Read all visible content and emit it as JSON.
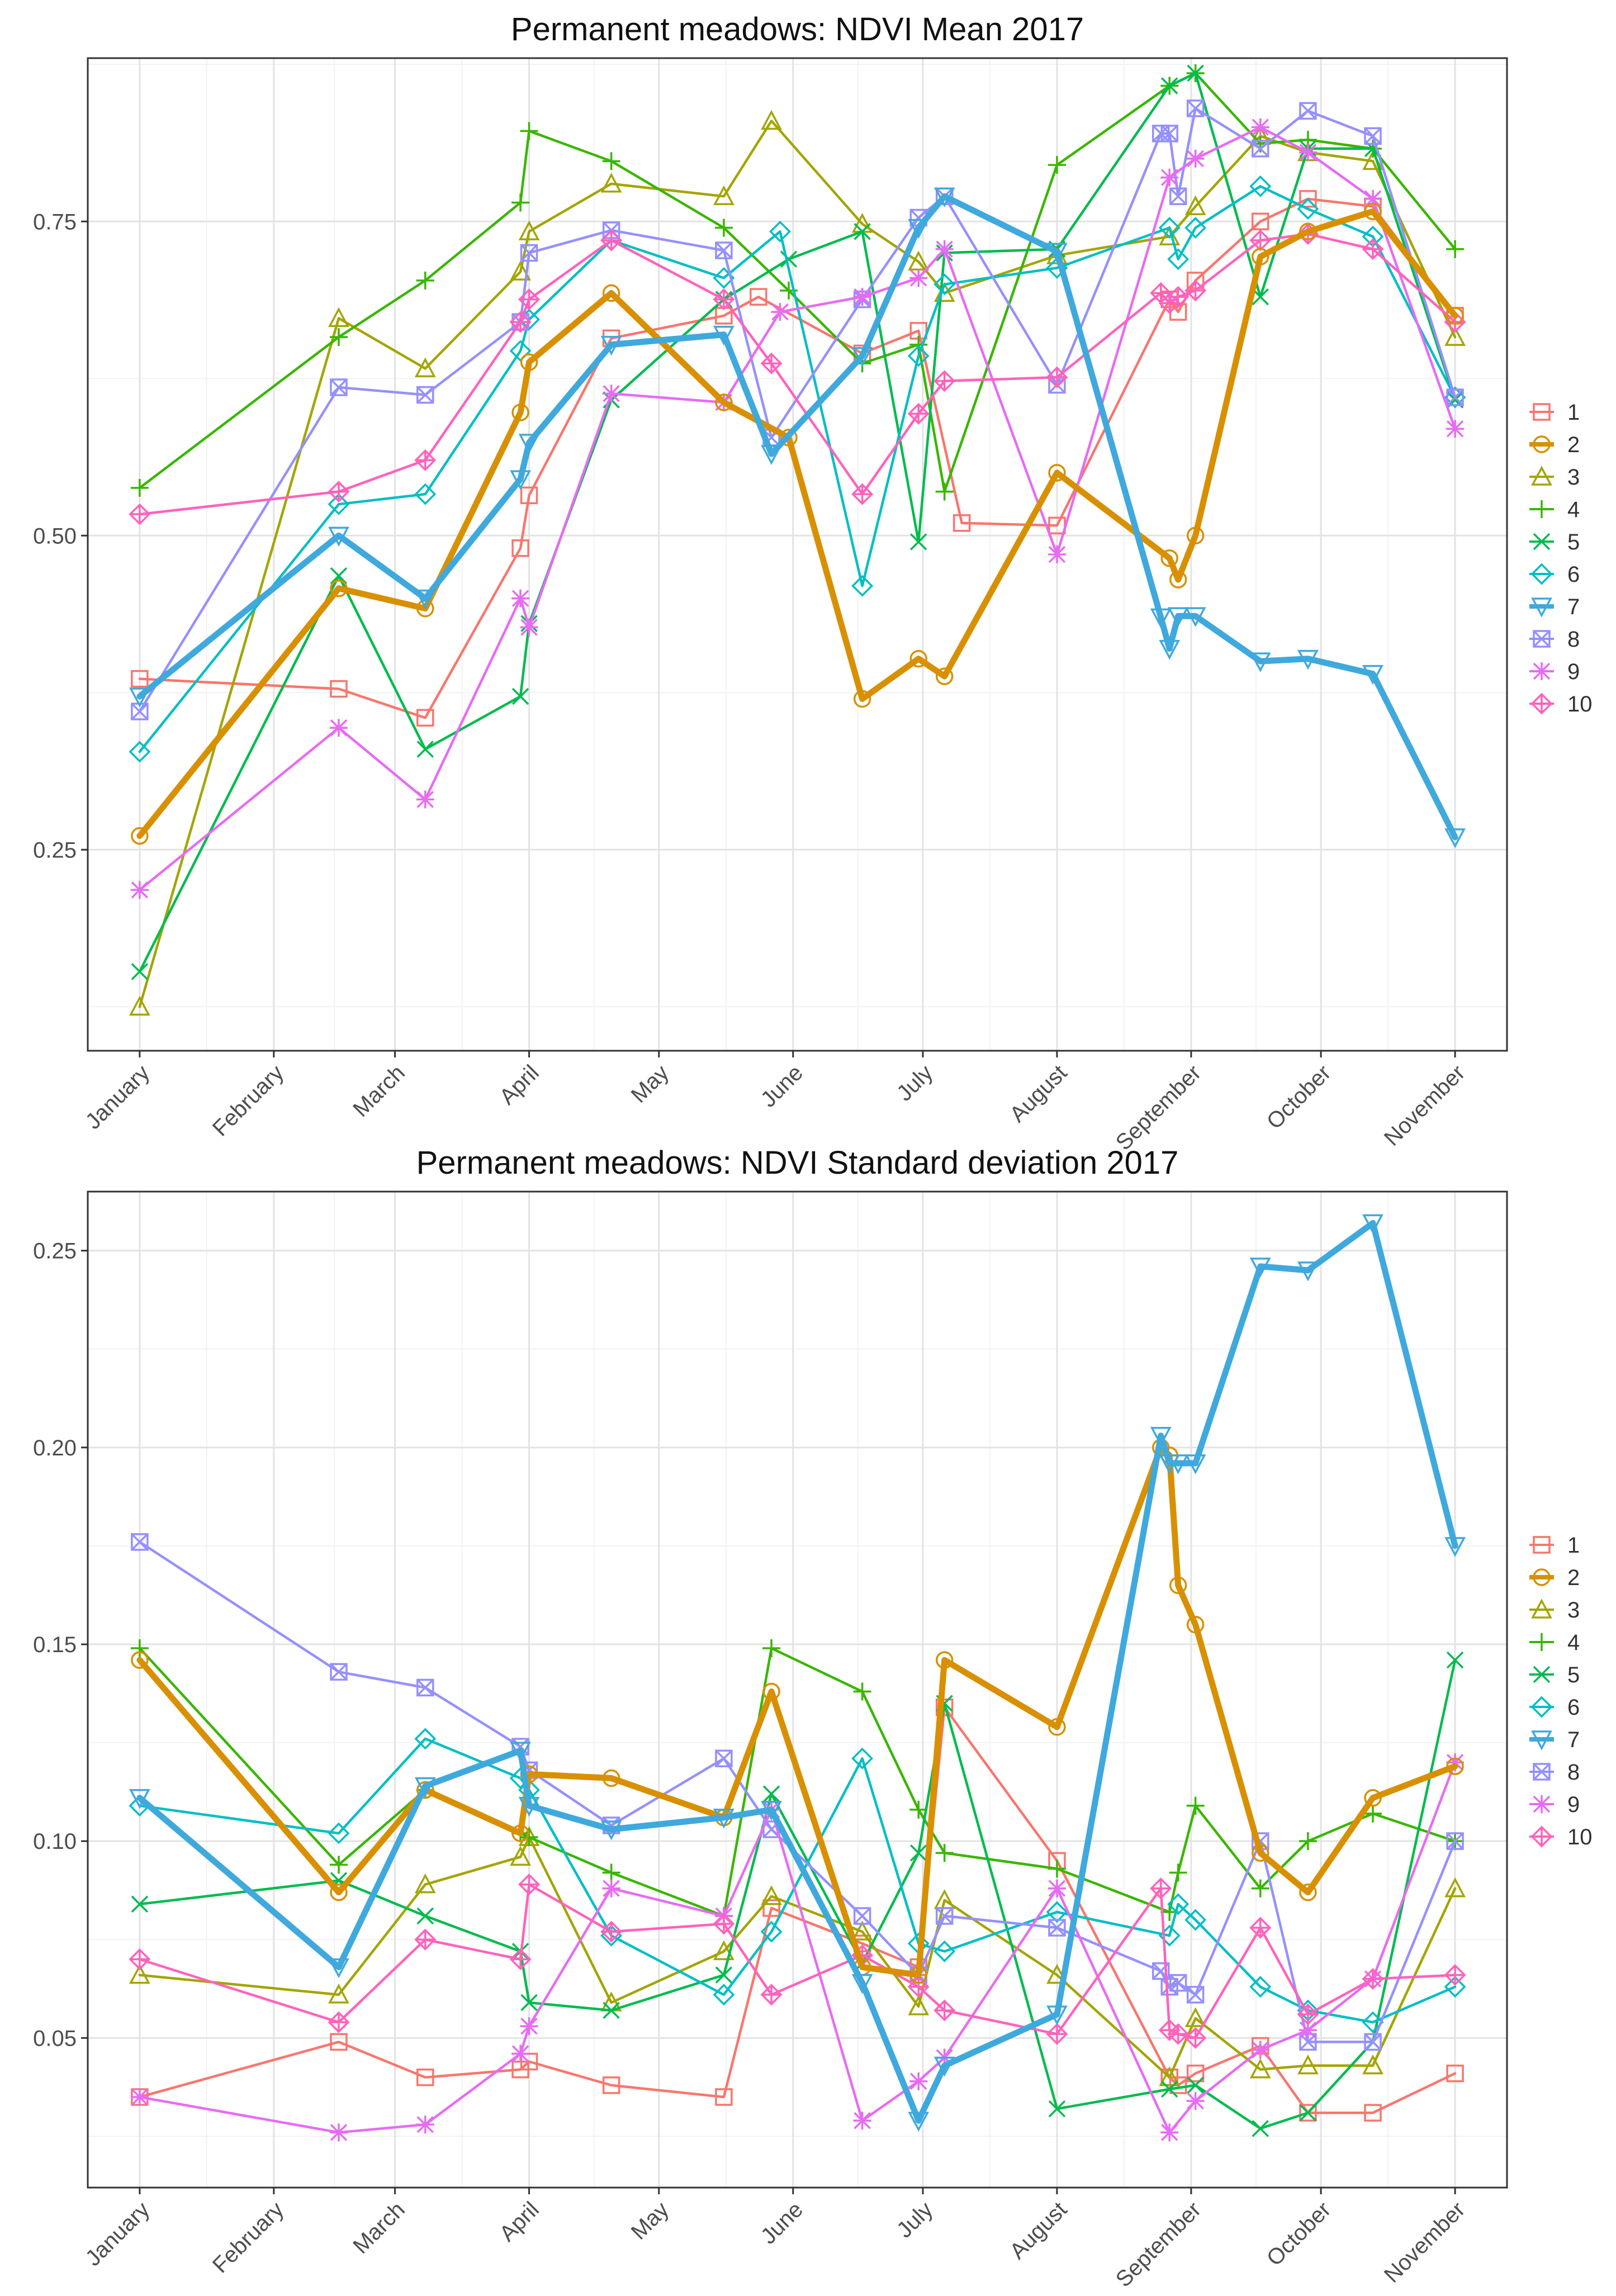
{
  "chart_data": [
    {
      "type": "line",
      "title": "Permanent meadows: NDVI Mean 2017",
      "xlabel": "",
      "ylabel": "",
      "ylim": [
        0.09,
        0.88
      ],
      "yticks": [
        "0.25",
        "0.50",
        "0.75"
      ],
      "ytick_values": [
        0.25,
        0.5,
        0.75
      ],
      "month_labels": [
        "January",
        "February",
        "March",
        "April",
        "May",
        "June",
        "July",
        "August",
        "September",
        "October",
        "November"
      ],
      "month_positions": [
        0,
        31,
        59,
        90,
        120,
        151,
        181,
        212,
        243,
        273,
        304
      ],
      "xlim": [
        -12,
        316
      ],
      "grid": true,
      "legend_position": "right",
      "series": [
        {
          "name": "1",
          "color": "#F8766D",
          "shape": "square",
          "highlight": false,
          "x": [
            0,
            46,
            66,
            88,
            90,
            109,
            135,
            143,
            167,
            180,
            190,
            212,
            238,
            240,
            244,
            259,
            270,
            285,
            304
          ],
          "y": [
            0.386,
            0.378,
            0.355,
            0.49,
            0.532,
            0.657,
            0.675,
            0.69,
            0.645,
            0.663,
            0.51,
            0.508,
            0.688,
            0.678,
            0.703,
            0.75,
            0.768,
            0.762,
            0.675
          ]
        },
        {
          "name": "2",
          "color": "#D89000",
          "shape": "circle",
          "highlight": true,
          "x": [
            0,
            46,
            66,
            88,
            90,
            109,
            135,
            150,
            167,
            180,
            186,
            212,
            238,
            240,
            244,
            259,
            270,
            285,
            304
          ],
          "y": [
            0.261,
            0.458,
            0.442,
            0.598,
            0.638,
            0.693,
            0.606,
            0.578,
            0.37,
            0.402,
            0.388,
            0.55,
            0.482,
            0.465,
            0.5,
            0.722,
            0.742,
            0.758,
            0.675
          ]
        },
        {
          "name": "3",
          "color": "#A3A500",
          "shape": "triangle",
          "highlight": false,
          "x": [
            0,
            46,
            66,
            88,
            90,
            109,
            135,
            146,
            167,
            180,
            186,
            212,
            238,
            244,
            259,
            270,
            285,
            304
          ],
          "y": [
            0.125,
            0.673,
            0.633,
            0.71,
            0.742,
            0.78,
            0.77,
            0.83,
            0.748,
            0.718,
            0.693,
            0.723,
            0.738,
            0.762,
            0.818,
            0.805,
            0.798,
            0.658
          ]
        },
        {
          "name": "4",
          "color": "#39B600",
          "shape": "plus",
          "highlight": false,
          "x": [
            0,
            46,
            66,
            88,
            90,
            109,
            135,
            150,
            167,
            180,
            186,
            212,
            238,
            244,
            259,
            270,
            285,
            304
          ],
          "y": [
            0.538,
            0.658,
            0.703,
            0.765,
            0.822,
            0.798,
            0.745,
            0.695,
            0.637,
            0.652,
            0.535,
            0.795,
            0.858,
            0.868,
            0.812,
            0.815,
            0.808,
            0.728
          ]
        },
        {
          "name": "5",
          "color": "#00BB4E",
          "shape": "x",
          "highlight": false,
          "x": [
            0,
            46,
            66,
            88,
            90,
            109,
            135,
            150,
            167,
            180,
            186,
            212,
            238,
            244,
            259,
            270,
            285,
            304
          ],
          "y": [
            0.153,
            0.468,
            0.33,
            0.372,
            0.43,
            0.608,
            0.688,
            0.72,
            0.742,
            0.495,
            0.725,
            0.728,
            0.858,
            0.868,
            0.69,
            0.808,
            0.808,
            0.608
          ]
        },
        {
          "name": "6",
          "color": "#00BFC4",
          "shape": "diamond",
          "highlight": false,
          "x": [
            0,
            46,
            66,
            88,
            90,
            109,
            135,
            148,
            167,
            180,
            186,
            212,
            238,
            240,
            244,
            259,
            270,
            285,
            304
          ],
          "y": [
            0.328,
            0.525,
            0.533,
            0.647,
            0.672,
            0.735,
            0.705,
            0.742,
            0.46,
            0.643,
            0.7,
            0.713,
            0.745,
            0.72,
            0.745,
            0.778,
            0.76,
            0.738,
            0.61
          ]
        },
        {
          "name": "7",
          "color": "#3FA9DD",
          "shape": "triangle-down",
          "highlight": true,
          "x": [
            0,
            46,
            66,
            88,
            90,
            109,
            135,
            146,
            167,
            180,
            186,
            212,
            236,
            238,
            240,
            244,
            259,
            270,
            285,
            304
          ],
          "y": [
            0.372,
            0.5,
            0.45,
            0.545,
            0.574,
            0.652,
            0.66,
            0.565,
            0.643,
            0.745,
            0.77,
            0.726,
            0.435,
            0.41,
            0.436,
            0.436,
            0.4,
            0.402,
            0.39,
            0.26
          ]
        },
        {
          "name": "8",
          "color": "#9590FF",
          "shape": "square-x",
          "highlight": false,
          "x": [
            0,
            46,
            66,
            88,
            90,
            109,
            135,
            146,
            167,
            180,
            186,
            212,
            236,
            238,
            240,
            244,
            259,
            270,
            285,
            304
          ],
          "y": [
            0.36,
            0.618,
            0.612,
            0.67,
            0.725,
            0.743,
            0.727,
            0.578,
            0.688,
            0.753,
            0.77,
            0.62,
            0.82,
            0.82,
            0.77,
            0.84,
            0.808,
            0.838,
            0.818,
            0.61
          ]
        },
        {
          "name": "9",
          "color": "#E76BF3",
          "shape": "asterisk",
          "highlight": false,
          "x": [
            0,
            46,
            66,
            88,
            90,
            109,
            135,
            148,
            167,
            180,
            186,
            212,
            238,
            244,
            259,
            270,
            285,
            304
          ],
          "y": [
            0.218,
            0.347,
            0.29,
            0.45,
            0.427,
            0.613,
            0.606,
            0.678,
            0.69,
            0.705,
            0.728,
            0.485,
            0.785,
            0.8,
            0.825,
            0.805,
            0.768,
            0.585
          ]
        },
        {
          "name": "10",
          "color": "#FF62BC",
          "shape": "diamond-plus",
          "highlight": false,
          "x": [
            0,
            46,
            66,
            88,
            90,
            109,
            135,
            146,
            167,
            180,
            186,
            212,
            236,
            238,
            240,
            244,
            259,
            270,
            285,
            304
          ],
          "y": [
            0.517,
            0.535,
            0.56,
            0.67,
            0.688,
            0.735,
            0.688,
            0.637,
            0.533,
            0.597,
            0.623,
            0.626,
            0.693,
            0.685,
            0.69,
            0.695,
            0.735,
            0.74,
            0.728,
            0.67
          ]
        }
      ]
    },
    {
      "type": "line",
      "title": "Permanent meadows: NDVI Standard deviation 2017",
      "xlabel": "",
      "ylabel": "",
      "ylim": [
        0.012,
        0.265
      ],
      "yticks": [
        "0.05",
        "0.10",
        "0.15",
        "0.20",
        "0.25"
      ],
      "ytick_values": [
        0.05,
        0.1,
        0.15,
        0.2,
        0.25
      ],
      "month_labels": [
        "January",
        "February",
        "March",
        "April",
        "May",
        "June",
        "July",
        "August",
        "September",
        "October",
        "November"
      ],
      "month_positions": [
        0,
        31,
        59,
        90,
        120,
        151,
        181,
        212,
        243,
        273,
        304
      ],
      "xlim": [
        -12,
        316
      ],
      "grid": true,
      "legend_position": "right",
      "series": [
        {
          "name": "1",
          "color": "#F8766D",
          "shape": "square",
          "highlight": false,
          "x": [
            0,
            46,
            66,
            88,
            90,
            109,
            135,
            146,
            167,
            180,
            186,
            212,
            238,
            240,
            244,
            259,
            270,
            285,
            304
          ],
          "y": [
            0.035,
            0.049,
            0.04,
            0.042,
            0.044,
            0.038,
            0.035,
            0.083,
            0.074,
            0.068,
            0.134,
            0.095,
            0.04,
            0.038,
            0.041,
            0.048,
            0.031,
            0.031,
            0.041
          ]
        },
        {
          "name": "2",
          "color": "#D89000",
          "shape": "circle",
          "highlight": true,
          "x": [
            0,
            46,
            66,
            88,
            90,
            109,
            135,
            146,
            167,
            180,
            186,
            212,
            236,
            238,
            240,
            244,
            259,
            270,
            285,
            304
          ],
          "y": [
            0.146,
            0.087,
            0.113,
            0.102,
            0.117,
            0.116,
            0.106,
            0.138,
            0.068,
            0.066,
            0.146,
            0.129,
            0.2,
            0.198,
            0.165,
            0.155,
            0.097,
            0.087,
            0.111,
            0.119
          ]
        },
        {
          "name": "3",
          "color": "#A3A500",
          "shape": "triangle",
          "highlight": false,
          "x": [
            0,
            46,
            66,
            88,
            90,
            109,
            135,
            146,
            167,
            180,
            186,
            212,
            238,
            244,
            259,
            270,
            285,
            304
          ],
          "y": [
            0.066,
            0.061,
            0.089,
            0.096,
            0.101,
            0.059,
            0.072,
            0.086,
            0.077,
            0.058,
            0.085,
            0.066,
            0.04,
            0.055,
            0.042,
            0.043,
            0.043,
            0.088
          ]
        },
        {
          "name": "4",
          "color": "#39B600",
          "shape": "plus",
          "highlight": false,
          "x": [
            0,
            46,
            66,
            88,
            90,
            109,
            135,
            146,
            167,
            180,
            186,
            212,
            238,
            240,
            244,
            259,
            270,
            285,
            304
          ],
          "y": [
            0.149,
            0.094,
            0.113,
            0.102,
            0.101,
            0.092,
            0.081,
            0.149,
            0.138,
            0.108,
            0.097,
            0.093,
            0.082,
            0.092,
            0.109,
            0.088,
            0.1,
            0.107,
            0.1
          ]
        },
        {
          "name": "5",
          "color": "#00BB4E",
          "shape": "x",
          "highlight": false,
          "x": [
            0,
            46,
            66,
            88,
            90,
            109,
            135,
            146,
            167,
            180,
            186,
            212,
            238,
            244,
            259,
            270,
            285,
            304
          ],
          "y": [
            0.084,
            0.09,
            0.081,
            0.072,
            0.059,
            0.057,
            0.066,
            0.112,
            0.069,
            0.097,
            0.135,
            0.032,
            0.037,
            0.038,
            0.027,
            0.031,
            0.049,
            0.146
          ]
        },
        {
          "name": "6",
          "color": "#00BFC4",
          "shape": "diamond",
          "highlight": false,
          "x": [
            0,
            46,
            66,
            88,
            90,
            109,
            135,
            146,
            167,
            180,
            186,
            212,
            238,
            240,
            244,
            259,
            270,
            285,
            304
          ],
          "y": [
            0.109,
            0.102,
            0.126,
            0.116,
            0.113,
            0.076,
            0.061,
            0.077,
            0.121,
            0.074,
            0.072,
            0.082,
            0.076,
            0.084,
            0.08,
            0.063,
            0.057,
            0.054,
            0.063
          ]
        },
        {
          "name": "7",
          "color": "#3FA9DD",
          "shape": "triangle-down",
          "highlight": true,
          "x": [
            0,
            46,
            66,
            88,
            90,
            109,
            135,
            146,
            167,
            180,
            186,
            212,
            236,
            238,
            240,
            244,
            259,
            270,
            285,
            304
          ],
          "y": [
            0.111,
            0.068,
            0.114,
            0.123,
            0.109,
            0.103,
            0.106,
            0.108,
            0.064,
            0.029,
            0.043,
            0.056,
            0.203,
            0.196,
            0.196,
            0.196,
            0.246,
            0.245,
            0.257,
            0.175
          ]
        },
        {
          "name": "8",
          "color": "#9590FF",
          "shape": "square-x",
          "highlight": false,
          "x": [
            0,
            46,
            66,
            88,
            90,
            109,
            135,
            146,
            167,
            180,
            186,
            212,
            236,
            238,
            240,
            244,
            259,
            270,
            285,
            304
          ],
          "y": [
            0.176,
            0.143,
            0.139,
            0.124,
            0.118,
            0.104,
            0.121,
            0.103,
            0.081,
            0.066,
            0.081,
            0.078,
            0.067,
            0.063,
            0.064,
            0.061,
            0.1,
            0.049,
            0.049,
            0.1
          ]
        },
        {
          "name": "9",
          "color": "#E76BF3",
          "shape": "asterisk",
          "highlight": false,
          "x": [
            0,
            46,
            66,
            88,
            90,
            109,
            135,
            146,
            167,
            180,
            186,
            212,
            238,
            244,
            259,
            270,
            285,
            304
          ],
          "y": [
            0.035,
            0.026,
            0.028,
            0.046,
            0.053,
            0.088,
            0.081,
            0.108,
            0.029,
            0.039,
            0.045,
            0.088,
            0.026,
            0.034,
            0.047,
            0.052,
            0.065,
            0.12
          ]
        },
        {
          "name": "10",
          "color": "#FF62BC",
          "shape": "diamond-plus",
          "highlight": false,
          "x": [
            0,
            46,
            66,
            88,
            90,
            109,
            135,
            146,
            167,
            180,
            186,
            212,
            236,
            238,
            240,
            244,
            259,
            270,
            285,
            304
          ],
          "y": [
            0.07,
            0.054,
            0.075,
            0.07,
            0.089,
            0.077,
            0.079,
            0.061,
            0.071,
            0.063,
            0.057,
            0.051,
            0.088,
            0.052,
            0.051,
            0.05,
            0.078,
            0.056,
            0.065,
            0.066
          ]
        }
      ]
    }
  ]
}
